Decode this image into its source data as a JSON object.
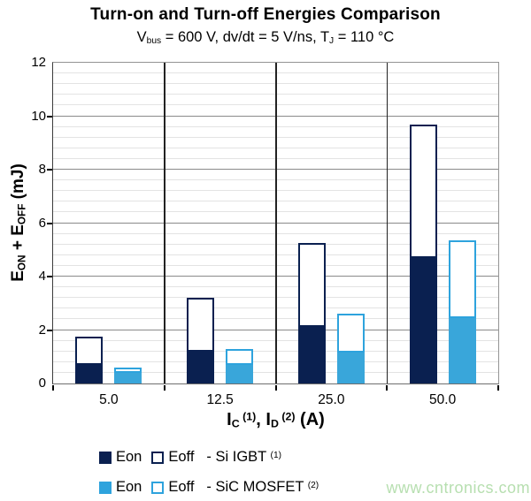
{
  "header": {
    "title": "Turn-on and Turn-off Energies Comparison",
    "subtitle_rich": [
      {
        "t": "V"
      },
      {
        "t": "bus",
        "m": "sub"
      },
      {
        "t": " = 600 V, dv/dt = 5 V/ns, T"
      },
      {
        "t": "J",
        "m": "sub"
      },
      {
        "t": " = 110 °C"
      }
    ]
  },
  "y_axis": {
    "title_rich": [
      {
        "t": "E"
      },
      {
        "t": "ON",
        "m": "sub"
      },
      {
        "t": " + E"
      },
      {
        "t": "OFF",
        "m": "sub"
      },
      {
        "t": " (mJ)"
      }
    ],
    "tick_labels": [
      "0",
      "2",
      "4",
      "6",
      "8",
      "10",
      "12"
    ]
  },
  "x_axis": {
    "title_rich": [
      {
        "t": "I"
      },
      {
        "t": "C",
        "m": "sub"
      },
      {
        "t": " (1)",
        "m": "sup"
      },
      {
        "t": ", I"
      },
      {
        "t": "D",
        "m": "sub"
      },
      {
        "t": " (2)",
        "m": "sup"
      },
      {
        "t": " (A)"
      }
    ],
    "labels": [
      "5.0",
      "12.5",
      "25.0",
      "50.0"
    ]
  },
  "legend": {
    "rows": [
      {
        "eon_label": "Eon",
        "eoff_label": "Eoff",
        "device_rich": [
          {
            "t": "- Si IGBT "
          },
          {
            "t": "(1)",
            "m": "sup"
          }
        ],
        "color": "#0a2050"
      },
      {
        "eon_label": "Eon",
        "eoff_label": "Eoff",
        "device_rich": [
          {
            "t": "- SiC MOSFET "
          },
          {
            "t": "(2)",
            "m": "sup"
          }
        ],
        "color": "#2ea3dd"
      }
    ]
  },
  "watermark": "www.cntronics.com",
  "colors": {
    "si_navy": "#0a2050",
    "sic_blue": "#39a6da",
    "sic_blue_border": "#2ea3dd",
    "grid_major": "#8a8a8a",
    "grid_minor": "#e3e3e3",
    "divider": "#222222",
    "watermark_green": "#b7dfb0"
  },
  "chart_data": {
    "type": "bar",
    "stacked": true,
    "title": "Turn-on and Turn-off Energies Comparison",
    "subtitle": "Vbus = 600 V, dv/dt = 5 V/ns, TJ = 110 °C",
    "xlabel": "IC (1), ID (2) (A)",
    "ylabel": "EON + EOFF (mJ)",
    "categories": [
      "5.0",
      "12.5",
      "25.0",
      "50.0"
    ],
    "series": [
      {
        "name": "Eon - Si IGBT",
        "stack": "Si IGBT",
        "fill": "#0a2050",
        "border": "#0a2050",
        "values": [
          0.7,
          1.2,
          2.1,
          4.7
        ]
      },
      {
        "name": "Eoff - Si IGBT",
        "stack": "Si IGBT",
        "fill": "#ffffff",
        "border": "#0a2050",
        "values": [
          1.05,
          2.0,
          3.15,
          5.0
        ]
      },
      {
        "name": "Eon - SiC MOSFET",
        "stack": "SiC MOSFET",
        "fill": "#39a6da",
        "border": "#39a6da",
        "values": [
          0.4,
          0.7,
          1.15,
          2.45
        ]
      },
      {
        "name": "Eoff - SiC MOSFET",
        "stack": "SiC MOSFET",
        "fill": "#ffffff",
        "border": "#2ea3dd",
        "values": [
          0.2,
          0.6,
          1.45,
          2.9
        ]
      }
    ],
    "stack_totals": {
      "Si IGBT": [
        1.75,
        3.2,
        5.25,
        9.7
      ],
      "SiC MOSFET": [
        0.6,
        1.3,
        2.6,
        5.35
      ]
    },
    "ylim": [
      0,
      12
    ],
    "y_major_unit": 2,
    "y_minor_unit": 0.4,
    "grid": true,
    "legend_position": "bottom"
  }
}
